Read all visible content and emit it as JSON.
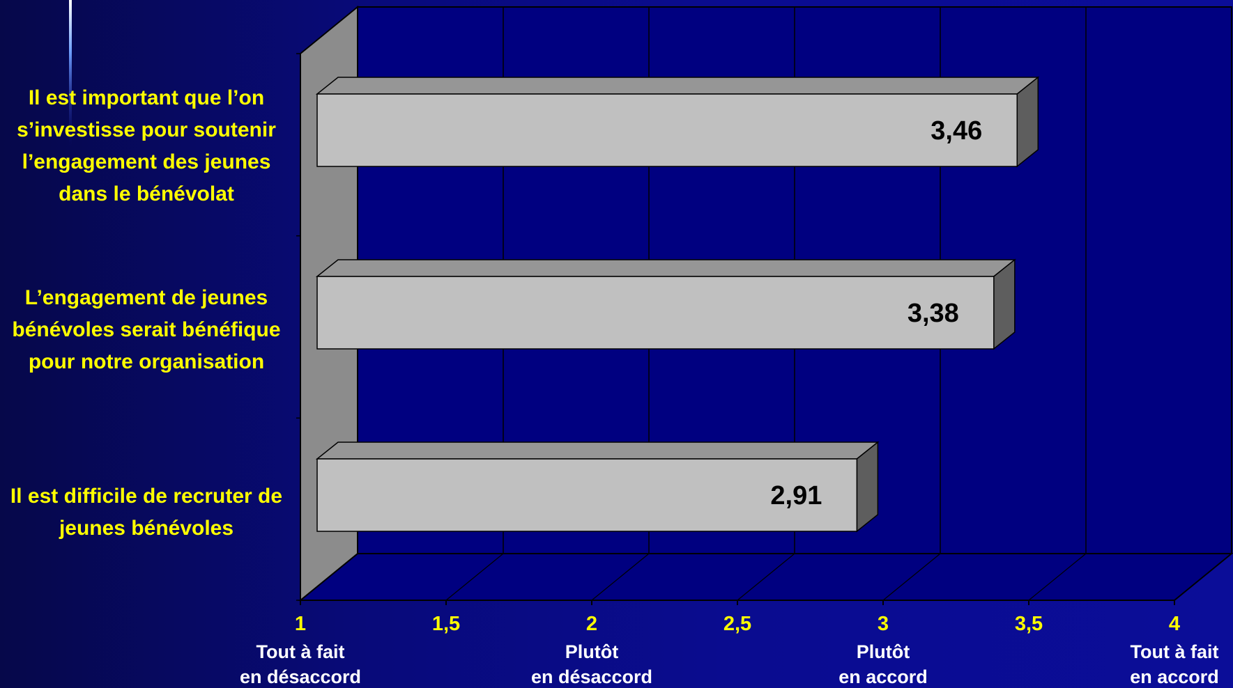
{
  "chart_data": {
    "type": "bar",
    "orientation": "horizontal",
    "categories": [
      "Il est important que l’on s’investisse pour soutenir l’engagement des jeunes dans le bénévolat",
      "L’engagement de jeunes bénévoles serait bénéfique pour notre organisation",
      "Il est difficile de recruter de jeunes bénévoles"
    ],
    "values": [
      3.46,
      3.38,
      2.91
    ],
    "value_labels": [
      "3,46",
      "3,38",
      "2,91"
    ],
    "xlim": [
      1,
      4
    ],
    "x_ticks": [
      1,
      1.5,
      2,
      2.5,
      3,
      3.5,
      4
    ],
    "x_tick_labels": [
      "1",
      "1,5",
      "2",
      "2,5",
      "3",
      "3,5",
      "4"
    ],
    "x_tick_descriptions": [
      [
        "Tout à fait",
        "en désaccord"
      ],
      null,
      [
        "Plutôt",
        "en désaccord"
      ],
      null,
      [
        "Plutôt",
        "en accord"
      ],
      null,
      [
        "Tout à fait",
        "en accord"
      ]
    ],
    "grid": true,
    "style": "3d",
    "colors": {
      "bar_front": "#c0c0c0",
      "bar_top": "#969696",
      "bar_side": "#5e5e5e",
      "label": "#ffff00",
      "tick_description": "#ffffff",
      "plot_background": "#000080",
      "back_wall": "#8c8c8c"
    }
  }
}
